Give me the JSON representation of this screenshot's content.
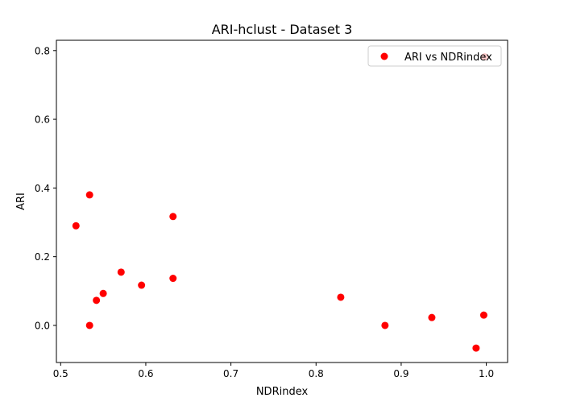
{
  "chart_data": {
    "type": "scatter",
    "title": "ARI-hclust - Dataset 3",
    "xlabel": "NDRindex",
    "ylabel": "ARI",
    "xlim": [
      0.495,
      1.025
    ],
    "ylim": [
      -0.108,
      0.83
    ],
    "x_ticks": [
      0.5,
      0.6,
      0.7,
      0.8,
      0.9,
      1.0
    ],
    "x_tick_labels": [
      "0.5",
      "0.6",
      "0.7",
      "0.8",
      "0.9",
      "1.0"
    ],
    "y_ticks": [
      0.0,
      0.2,
      0.4,
      0.6,
      0.8
    ],
    "y_tick_labels": [
      "0.0",
      "0.2",
      "0.4",
      "0.6",
      "0.8"
    ],
    "grid": false,
    "legend_position": "top-right",
    "series": [
      {
        "name": "ARI vs NDRindex",
        "color": "#ff0000",
        "marker": "circle",
        "points": [
          {
            "x": 0.518,
            "y": 0.29
          },
          {
            "x": 0.534,
            "y": 0.38
          },
          {
            "x": 0.534,
            "y": 0.0
          },
          {
            "x": 0.542,
            "y": 0.073
          },
          {
            "x": 0.55,
            "y": 0.093
          },
          {
            "x": 0.571,
            "y": 0.155
          },
          {
            "x": 0.595,
            "y": 0.117
          },
          {
            "x": 0.632,
            "y": 0.317
          },
          {
            "x": 0.632,
            "y": 0.137
          },
          {
            "x": 0.829,
            "y": 0.082
          },
          {
            "x": 0.881,
            "y": 0.0
          },
          {
            "x": 0.936,
            "y": 0.023
          },
          {
            "x": 0.988,
            "y": -0.066
          },
          {
            "x": 0.997,
            "y": 0.03
          },
          {
            "x": 0.998,
            "y": 0.782
          }
        ]
      }
    ]
  }
}
